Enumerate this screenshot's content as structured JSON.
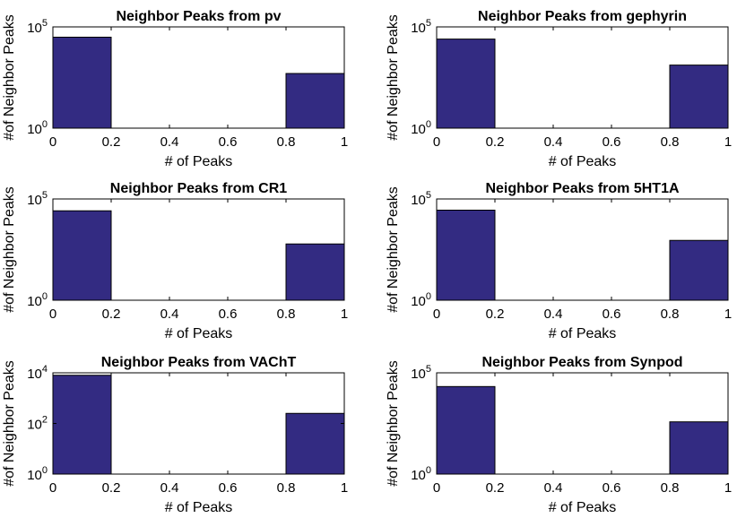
{
  "chart_data": [
    {
      "type": "bar",
      "title": "Neighbor Peaks from pv",
      "xlabel": "# of Peaks",
      "ylabel": "#of Neighbor Peaks",
      "xlim": [
        0,
        1
      ],
      "ylim": [
        1,
        100000
      ],
      "yscale": "log",
      "x_ticks": [
        "0",
        "0.2",
        "0.4",
        "0.6",
        "0.8",
        "1"
      ],
      "y_ticks": [
        {
          "base": "10",
          "exp": "0",
          "value": 1
        },
        {
          "base": "10",
          "exp": "5",
          "value": 100000
        }
      ],
      "bins": [
        [
          0,
          0.2
        ],
        [
          0.2,
          0.4
        ],
        [
          0.4,
          0.6
        ],
        [
          0.6,
          0.8
        ],
        [
          0.8,
          1
        ]
      ],
      "values": [
        31000,
        0,
        0,
        0,
        500
      ],
      "bar_color": "#332b82",
      "grid": false
    },
    {
      "type": "bar",
      "title": "Neighbor Peaks from gephyrin",
      "xlabel": "# of Peaks",
      "ylabel": "#of Neighbor Peaks",
      "xlim": [
        0,
        1
      ],
      "ylim": [
        1,
        100000
      ],
      "yscale": "log",
      "x_ticks": [
        "0",
        "0.2",
        "0.4",
        "0.6",
        "0.8",
        "1"
      ],
      "y_ticks": [
        {
          "base": "10",
          "exp": "0",
          "value": 1
        },
        {
          "base": "10",
          "exp": "5",
          "value": 100000
        }
      ],
      "bins": [
        [
          0,
          0.2
        ],
        [
          0.2,
          0.4
        ],
        [
          0.4,
          0.6
        ],
        [
          0.6,
          0.8
        ],
        [
          0.8,
          1
        ]
      ],
      "values": [
        25000,
        0,
        0,
        0,
        1300
      ],
      "bar_color": "#332b82",
      "grid": false
    },
    {
      "type": "bar",
      "title": "Neighbor Peaks from CR1",
      "xlabel": "# of Peaks",
      "ylabel": "#of Neighbor Peaks",
      "xlim": [
        0,
        1
      ],
      "ylim": [
        1,
        100000
      ],
      "yscale": "log",
      "x_ticks": [
        "0",
        "0.2",
        "0.4",
        "0.6",
        "0.8",
        "1"
      ],
      "y_ticks": [
        {
          "base": "10",
          "exp": "0",
          "value": 1
        },
        {
          "base": "10",
          "exp": "5",
          "value": 100000
        }
      ],
      "bins": [
        [
          0,
          0.2
        ],
        [
          0.2,
          0.4
        ],
        [
          0.4,
          0.6
        ],
        [
          0.6,
          0.8
        ],
        [
          0.8,
          1
        ]
      ],
      "values": [
        26000,
        0,
        0,
        0,
        600
      ],
      "bar_color": "#332b82",
      "grid": false
    },
    {
      "type": "bar",
      "title": "Neighbor Peaks from 5HT1A",
      "xlabel": "# of Peaks",
      "ylabel": "#of Neighbor Peaks",
      "xlim": [
        0,
        1
      ],
      "ylim": [
        1,
        100000
      ],
      "yscale": "log",
      "x_ticks": [
        "0",
        "0.2",
        "0.4",
        "0.6",
        "0.8",
        "1"
      ],
      "y_ticks": [
        {
          "base": "10",
          "exp": "0",
          "value": 1
        },
        {
          "base": "10",
          "exp": "5",
          "value": 100000
        }
      ],
      "bins": [
        [
          0,
          0.2
        ],
        [
          0.2,
          0.4
        ],
        [
          0.4,
          0.6
        ],
        [
          0.6,
          0.8
        ],
        [
          0.8,
          1
        ]
      ],
      "values": [
        28000,
        0,
        0,
        0,
        900
      ],
      "bar_color": "#332b82",
      "grid": false
    },
    {
      "type": "bar",
      "title": "Neighbor Peaks from VAChT",
      "xlabel": "# of Peaks",
      "ylabel": "#of Neighbor Peaks",
      "xlim": [
        0,
        1
      ],
      "ylim": [
        1,
        10000
      ],
      "yscale": "log",
      "x_ticks": [
        "0",
        "0.2",
        "0.4",
        "0.6",
        "0.8",
        "1"
      ],
      "y_ticks": [
        {
          "base": "10",
          "exp": "0",
          "value": 1
        },
        {
          "base": "10",
          "exp": "2",
          "value": 100
        },
        {
          "base": "10",
          "exp": "4",
          "value": 10000
        }
      ],
      "bins": [
        [
          0,
          0.2
        ],
        [
          0.2,
          0.4
        ],
        [
          0.4,
          0.6
        ],
        [
          0.6,
          0.8
        ],
        [
          0.8,
          1
        ]
      ],
      "values": [
        8000,
        0,
        0,
        0,
        250
      ],
      "bar_color": "#332b82",
      "grid": false
    },
    {
      "type": "bar",
      "title": "Neighbor Peaks from Synpod",
      "xlabel": "# of Peaks",
      "ylabel": "#of Neighbor Peaks",
      "xlim": [
        0,
        1
      ],
      "ylim": [
        1,
        100000
      ],
      "yscale": "log",
      "x_ticks": [
        "0",
        "0.2",
        "0.4",
        "0.6",
        "0.8",
        "1"
      ],
      "y_ticks": [
        {
          "base": "10",
          "exp": "0",
          "value": 1
        },
        {
          "base": "10",
          "exp": "5",
          "value": 100000
        }
      ],
      "bins": [
        [
          0,
          0.2
        ],
        [
          0.2,
          0.4
        ],
        [
          0.4,
          0.6
        ],
        [
          0.6,
          0.8
        ],
        [
          0.8,
          1
        ]
      ],
      "values": [
        21000,
        0,
        0,
        0,
        380
      ],
      "bar_color": "#332b82",
      "grid": false
    }
  ]
}
